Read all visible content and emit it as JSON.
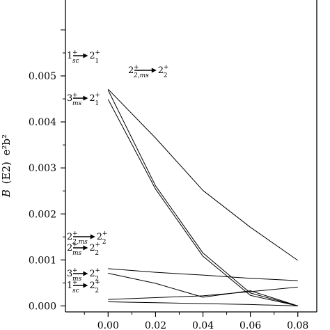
{
  "chart_data": {
    "type": "line",
    "title": "",
    "xlabel": "",
    "ylabel": "B (E2) e²b²",
    "ylabel_parts": {
      "italic": "B",
      "paren": "(E2)",
      "unit": "e²b²"
    },
    "xlim": [
      -0.018,
      0.088
    ],
    "ylim": [
      -0.00013,
      0.00665
    ],
    "xticks": [
      0.0,
      0.02,
      0.04,
      0.06,
      0.08
    ],
    "xtick_labels": [
      "0.00",
      "0.02",
      "0.04",
      "0.06",
      "0.08"
    ],
    "yticks": [
      0.0,
      0.001,
      0.002,
      0.003,
      0.004,
      0.005
    ],
    "ytick_labels": [
      "0.000",
      "0.001",
      "0.002",
      "0.003",
      "0.004",
      "0.005"
    ],
    "grid": false,
    "legend": "none",
    "x": [
      0.0,
      0.02,
      0.04,
      0.06,
      0.08
    ],
    "series": [
      {
        "values": [
          0.00471,
          0.00365,
          0.00251,
          0.00171,
          0.00099
        ]
      },
      {
        "values": [
          0.00469,
          0.00261,
          0.00115,
          0.00028,
          0.0
        ]
      },
      {
        "values": [
          0.00449,
          0.00254,
          0.00108,
          0.00023,
          0.0
        ]
      },
      {
        "values": [
          0.00081,
          0.00073,
          0.00067,
          0.0006,
          0.00055
        ]
      },
      {
        "values": [
          0.00071,
          0.00049,
          0.00019,
          0.00033,
          0.0
        ]
      },
      {
        "values": [
          0.00014,
          0.00018,
          0.00022,
          0.00031,
          0.00041
        ]
      },
      {
        "values": [
          9e-05,
          7e-05,
          5e-05,
          3e-05,
          0.0
        ]
      }
    ],
    "annotations": [
      {
        "from_main": "1",
        "from_sup": "+",
        "from_sub": "sc",
        "to_main": "2",
        "to_sup": "+",
        "to_sub": "1"
      },
      {
        "from_main": "2",
        "from_sup": "+",
        "from_sub": "2,ms",
        "to_main": "2",
        "to_sup": "+",
        "to_sub": "2"
      },
      {
        "from_main": "3",
        "from_sup": "+",
        "from_sub": "ms",
        "to_main": "2",
        "to_sup": "+",
        "to_sub": "1"
      },
      {
        "from_main": "2",
        "from_sup": "+",
        "from_sub": "2,ms",
        "to_main": "2",
        "to_sup": "+",
        "to_sub": "2"
      },
      {
        "from_main": "2",
        "from_sup": "+",
        "from_sub": "ms",
        "to_main": "2",
        "to_sup": "+",
        "to_sub": "2"
      },
      {
        "from_main": "3",
        "from_sup": "+",
        "from_sub": "ms",
        "to_main": "2",
        "to_sup": "+",
        "to_sub": "2"
      },
      {
        "from_main": "1",
        "from_sup": "+",
        "from_sub": "sc",
        "to_main": "2",
        "to_sup": "+",
        "to_sub": "2"
      }
    ]
  }
}
